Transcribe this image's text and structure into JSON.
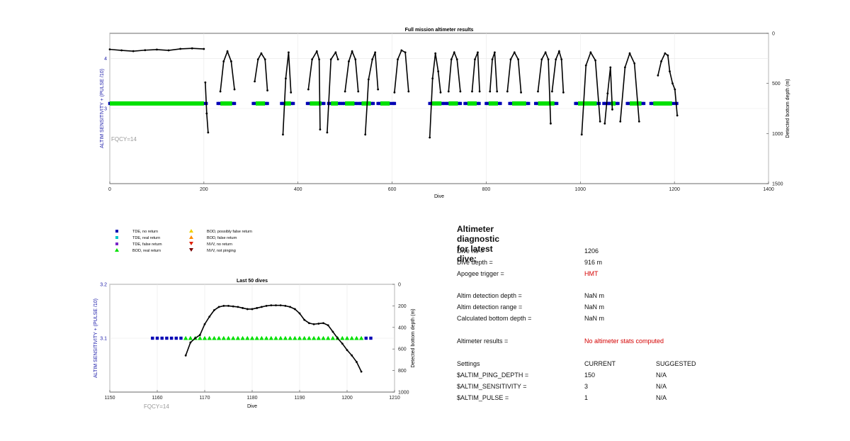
{
  "colors": {
    "tde_no_return": "#0000b4",
    "tde_real_return": "#00c8c8",
    "tde_false_return": "#7a28c8",
    "bod_real_return": "#00e000",
    "bod_possibly_false": "#f0d000",
    "bod_false_return": "#ff8c00",
    "nvv_no_return": "#e02000",
    "nvv_not_pinging": "#7a0000",
    "depth_line": "#000000",
    "left_axis_label": "#1a1aa8",
    "alert_text": "#d40000"
  },
  "legend": {
    "tde_no_return": "TDE, no return",
    "tde_real_return": "TDE, real return",
    "tde_false_return": "TDE, false return",
    "bod_real_return": "BOD, real return",
    "bod_possibly_false": "BOD, possibly false return",
    "bod_false_return": "BOD, false return",
    "nvv_no_return": "NVV, no return",
    "nvv_not_pinging": "NVV, not pinging"
  },
  "chart_data": [
    {
      "type": "scatter",
      "title": "Full mission altimeter results",
      "xlabel": "Dive",
      "ylabel": "ALTIM SENSITIVITY + (PULSE /10)",
      "y2label": "Detected bottom depth (m)",
      "annotation": "FQCY=14",
      "xlim": [
        0,
        1400
      ],
      "ylim": [
        1.5,
        4.5
      ],
      "y2lim": [
        1500,
        0
      ],
      "xticks": [
        "0",
        "200",
        "400",
        "600",
        "800",
        "1000",
        "1200",
        "1400"
      ],
      "yticks": [
        "3",
        "4"
      ],
      "y2ticks": [
        "0",
        "500",
        "1000",
        "1500"
      ],
      "grid": true,
      "series": [
        {
          "name": "TDE, no return",
          "marker": "square",
          "axis": "left",
          "x_ranges": [
            [
              0,
              205
            ],
            [
              230,
              265
            ],
            [
              305,
              335
            ],
            [
              365,
              390
            ],
            [
              420,
              455
            ],
            [
              465,
              490
            ],
            [
              495,
              525
            ],
            [
              530,
              560
            ],
            [
              570,
              605
            ],
            [
              680,
              710
            ],
            [
              715,
              745
            ],
            [
              755,
              785
            ],
            [
              800,
              830
            ],
            [
              850,
              890
            ],
            [
              905,
              950
            ],
            [
              990,
              1040
            ],
            [
              1050,
              1060
            ],
            [
              1060,
              1080
            ],
            [
              1100,
              1135
            ],
            [
              1150,
              1205
            ]
          ],
          "y": 3.1
        },
        {
          "name": "BOD, real return",
          "marker": "triangle",
          "axis": "left",
          "x_ranges": [
            [
              0,
              200
            ],
            [
              235,
              260
            ],
            [
              310,
              330
            ],
            [
              370,
              385
            ],
            [
              425,
              450
            ],
            [
              470,
              485
            ],
            [
              500,
              520
            ],
            [
              535,
              555
            ],
            [
              575,
              595
            ],
            [
              685,
              705
            ],
            [
              720,
              740
            ],
            [
              760,
              780
            ],
            [
              805,
              825
            ],
            [
              855,
              885
            ],
            [
              910,
              945
            ],
            [
              995,
              1035
            ],
            [
              1065,
              1075
            ],
            [
              1105,
              1130
            ],
            [
              1155,
              1195
            ]
          ],
          "y": 3.1
        },
        {
          "name": "Detected bottom depth",
          "marker": "dot",
          "axis": "right",
          "dives": [
            {
              "x": [
                0,
                25,
                50,
                75,
                100,
                125,
                150,
                175,
                200
              ],
              "y": [
                160,
                170,
                178,
                168,
                162,
                170,
                155,
                150,
                156
              ]
            },
            {
              "x": [
                203,
                206,
                209
              ],
              "y": [
                490,
                800,
                990
              ]
            },
            {
              "x": [
                235,
                242,
                250,
                258,
                265
              ],
              "y": [
                580,
                280,
                180,
                280,
                560
              ]
            },
            {
              "x": [
                308,
                315,
                322,
                330,
                335
              ],
              "y": [
                480,
                260,
                200,
                260,
                570
              ]
            },
            {
              "x": [
                368,
                374,
                380,
                385
              ],
              "y": [
                1010,
                450,
                190,
                590
              ]
            },
            {
              "x": [
                422,
                430,
                440,
                445,
                447
              ],
              "y": [
                560,
                260,
                180,
                260,
                960
              ]
            },
            {
              "x": [
                462,
                470,
                480,
                485
              ],
              "y": [
                990,
                260,
                190,
                260
              ]
            },
            {
              "x": [
                500,
                508,
                515,
                522,
                528
              ],
              "y": [
                580,
                280,
                180,
                260,
                580
              ]
            },
            {
              "x": [
                543,
                550,
                558,
                564,
                570
              ],
              "y": [
                1010,
                460,
                260,
                190,
                560
              ]
            },
            {
              "x": [
                605,
                612,
                620,
                628,
                635
              ],
              "y": [
                590,
                260,
                170,
                190,
                580
              ]
            },
            {
              "x": [
                680,
                686,
                692,
                698,
                703
              ],
              "y": [
                1040,
                450,
                200,
                380,
                590
              ]
            },
            {
              "x": [
                720,
                726,
                732,
                738,
                745
              ],
              "y": [
                580,
                260,
                190,
                260,
                580
              ]
            },
            {
              "x": [
                770,
                776,
                782,
                786
              ],
              "y": [
                580,
                260,
                190,
                580
              ]
            },
            {
              "x": [
                808,
                813,
                818,
                823
              ],
              "y": [
                580,
                260,
                190,
                580
              ]
            },
            {
              "x": [
                845,
                852,
                860,
                868,
                874
              ],
              "y": [
                580,
                260,
                190,
                260,
                590
              ]
            },
            {
              "x": [
                910,
                918,
                926,
                932,
                937
              ],
              "y": [
                580,
                260,
                190,
                260,
                900
              ]
            },
            {
              "x": [
                940,
                948,
                955,
                960,
                964
              ],
              "y": [
                580,
                260,
                180,
                260,
                590
              ]
            },
            {
              "x": [
                1003,
                1012,
                1022,
                1032,
                1042
              ],
              "y": [
                1010,
                320,
                190,
                270,
                880
              ]
            },
            {
              "x": [
                1052,
                1058,
                1064,
                1068
              ],
              "y": [
                900,
                600,
                340,
                760
              ]
            },
            {
              "x": [
                1085,
                1095,
                1105,
                1115,
                1125
              ],
              "y": [
                880,
                340,
                200,
                300,
                880
              ]
            },
            {
              "x": [
                1165,
                1172,
                1180,
                1186,
                1190,
                1196,
                1201,
                1206
              ],
              "y": [
                420,
                280,
                200,
                220,
                380,
                500,
                560,
                820
              ]
            }
          ]
        }
      ]
    },
    {
      "type": "scatter",
      "title": "Last 50 dives",
      "xlabel": "Dive",
      "ylabel": "ALTIM SENSITIVITY + (PULSE /10)",
      "y2label": "Detected bottom depth (m)",
      "annotation": "FQCY=14",
      "xlim": [
        1150,
        1210
      ],
      "ylim": [
        3.0,
        3.2
      ],
      "y2lim": [
        1000,
        0
      ],
      "xticks": [
        "1150",
        "1160",
        "1170",
        "1180",
        "1190",
        "1200",
        "1210"
      ],
      "yticks": [
        "3.1",
        "3.2"
      ],
      "y2ticks": [
        "0",
        "200",
        "400",
        "600",
        "800",
        "1000"
      ],
      "grid": true,
      "series": [
        {
          "name": "TDE, no return",
          "marker": "square",
          "axis": "left",
          "x": [
            1159,
            1160,
            1161,
            1162,
            1163,
            1164,
            1165,
            1204,
            1205
          ],
          "y": 3.1
        },
        {
          "name": "BOD, real return",
          "marker": "triangle",
          "axis": "left",
          "x": [
            1166,
            1167,
            1168,
            1169,
            1170,
            1171,
            1172,
            1173,
            1174,
            1175,
            1176,
            1177,
            1178,
            1179,
            1180,
            1181,
            1182,
            1183,
            1184,
            1185,
            1186,
            1187,
            1188,
            1189,
            1190,
            1191,
            1192,
            1193,
            1194,
            1195,
            1196,
            1197,
            1198,
            1199,
            1200,
            1201,
            1202,
            1203
          ],
          "y": 3.1
        },
        {
          "name": "Detected bottom depth",
          "marker": "dot",
          "axis": "right",
          "x": [
            1166,
            1167,
            1168,
            1169,
            1170,
            1171,
            1172,
            1173,
            1174,
            1175,
            1176,
            1177,
            1178,
            1179,
            1180,
            1181,
            1182,
            1183,
            1184,
            1185,
            1186,
            1187,
            1188,
            1189,
            1190,
            1191,
            1192,
            1193,
            1194,
            1195,
            1196,
            1197,
            1198,
            1199,
            1200,
            1201,
            1202,
            1203
          ],
          "y": [
            660,
            540,
            500,
            470,
            370,
            300,
            240,
            210,
            200,
            200,
            205,
            210,
            220,
            230,
            230,
            220,
            210,
            200,
            195,
            195,
            195,
            200,
            210,
            230,
            270,
            330,
            360,
            370,
            365,
            360,
            380,
            440,
            500,
            550,
            610,
            660,
            720,
            810
          ]
        }
      ]
    }
  ],
  "diagnostic": {
    "title": "Altimeter diagnostic for latest dive:",
    "dive_no_label": "Dive no =",
    "dive_no": "1206",
    "dive_depth_label": "Dive depth =",
    "dive_depth": "916 m",
    "apogee_label": "Apogee trigger =",
    "apogee": "HMT",
    "detect_depth_label": "Altim detection depth =",
    "detect_depth": "NaN m",
    "detect_range_label": "Altim detection range =",
    "detect_range": "NaN m",
    "calc_depth_label": "Calculated bottom depth =",
    "calc_depth": "NaN m",
    "results_label": "Altimeter results =",
    "results": "No altimeter stats computed",
    "settings_label": "Settings",
    "current_label": "CURRENT",
    "suggested_label": "SUGGESTED",
    "settings": [
      {
        "name": "$ALTIM_PING_DEPTH =",
        "current": "150",
        "suggested": "N/A"
      },
      {
        "name": "$ALTIM_SENSITIVITY =",
        "current": "3",
        "suggested": "N/A"
      },
      {
        "name": "$ALTIM_PULSE =",
        "current": "1",
        "suggested": "N/A"
      }
    ]
  }
}
